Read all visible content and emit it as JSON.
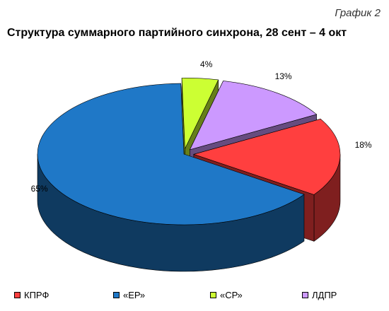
{
  "caption": "График 2",
  "chart_data": {
    "type": "pie",
    "title": "Структура суммарного партийного синхрона, 28 сент – 4 окт",
    "three_d": true,
    "exploded": true,
    "legend_position": "bottom",
    "slices": [
      {
        "name": "КПРФ",
        "value": 18,
        "label": "18%",
        "color": "#ff3f3f",
        "side_color": "#7f1f1f"
      },
      {
        "name": "«ЕР»",
        "value": 65,
        "label": "65%",
        "color": "#1f78c7",
        "side_color": "#0f3a60"
      },
      {
        "name": "«СР»",
        "value": 4,
        "label": "4%",
        "color": "#ccff33",
        "side_color": "#667f19"
      },
      {
        "name": "ЛДПР",
        "value": 13,
        "label": "13%",
        "color": "#cc99ff",
        "side_color": "#664c7f"
      }
    ]
  }
}
